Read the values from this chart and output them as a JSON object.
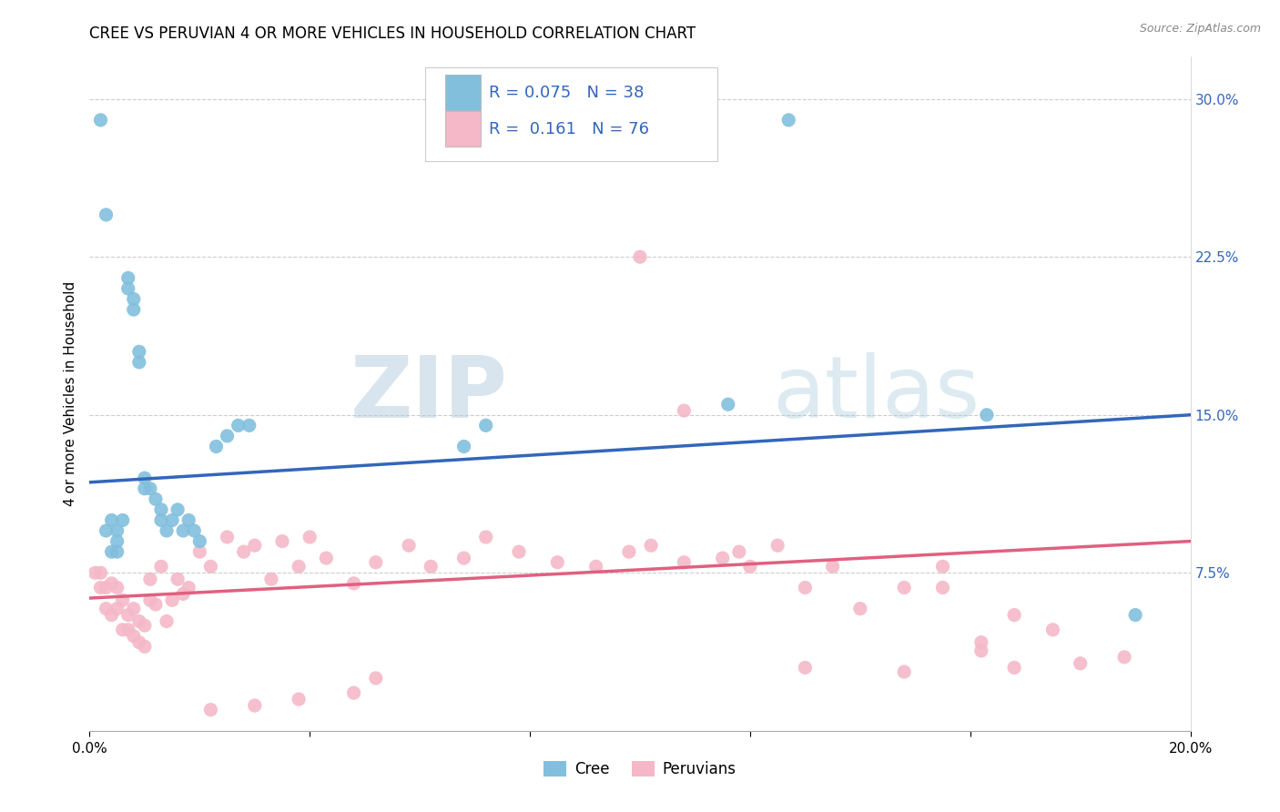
{
  "title": "CREE VS PERUVIAN 4 OR MORE VEHICLES IN HOUSEHOLD CORRELATION CHART",
  "source": "Source: ZipAtlas.com",
  "ylabel": "4 or more Vehicles in Household",
  "xmin": 0.0,
  "xmax": 0.2,
  "ymin": 0.0,
  "ymax": 0.32,
  "color_cree": "#82bfdd",
  "color_peruvian": "#f4b8c8",
  "color_cree_line": "#3366bb",
  "color_peruvian_line": "#e06080",
  "watermark_zip": "ZIP",
  "watermark_atlas": "atlas",
  "cree_x": [
    0.002,
    0.003,
    0.003,
    0.004,
    0.004,
    0.005,
    0.005,
    0.005,
    0.006,
    0.007,
    0.007,
    0.008,
    0.008,
    0.009,
    0.009,
    0.01,
    0.01,
    0.011,
    0.012,
    0.013,
    0.013,
    0.014,
    0.015,
    0.016,
    0.017,
    0.018,
    0.019,
    0.02,
    0.023,
    0.025,
    0.027,
    0.029,
    0.068,
    0.072,
    0.116,
    0.127,
    0.163,
    0.19
  ],
  "cree_y": [
    0.29,
    0.245,
    0.095,
    0.085,
    0.1,
    0.085,
    0.09,
    0.095,
    0.1,
    0.21,
    0.215,
    0.2,
    0.205,
    0.175,
    0.18,
    0.115,
    0.12,
    0.115,
    0.11,
    0.1,
    0.105,
    0.095,
    0.1,
    0.105,
    0.095,
    0.1,
    0.095,
    0.09,
    0.135,
    0.14,
    0.145,
    0.145,
    0.135,
    0.145,
    0.155,
    0.29,
    0.15,
    0.055
  ],
  "peruvian_x": [
    0.001,
    0.002,
    0.002,
    0.003,
    0.003,
    0.004,
    0.004,
    0.005,
    0.005,
    0.006,
    0.006,
    0.007,
    0.007,
    0.008,
    0.008,
    0.009,
    0.009,
    0.01,
    0.01,
    0.011,
    0.011,
    0.012,
    0.013,
    0.014,
    0.015,
    0.016,
    0.017,
    0.018,
    0.02,
    0.022,
    0.025,
    0.028,
    0.03,
    0.033,
    0.035,
    0.038,
    0.04,
    0.043,
    0.048,
    0.052,
    0.058,
    0.062,
    0.068,
    0.072,
    0.078,
    0.085,
    0.092,
    0.098,
    0.102,
    0.108,
    0.115,
    0.12,
    0.125,
    0.13,
    0.135,
    0.14,
    0.148,
    0.155,
    0.162,
    0.168,
    0.1,
    0.108,
    0.118,
    0.13,
    0.148,
    0.155,
    0.162,
    0.168,
    0.175,
    0.18,
    0.188,
    0.052,
    0.048,
    0.038,
    0.03,
    0.022
  ],
  "peruvian_y": [
    0.075,
    0.068,
    0.075,
    0.058,
    0.068,
    0.055,
    0.07,
    0.058,
    0.068,
    0.048,
    0.062,
    0.048,
    0.055,
    0.045,
    0.058,
    0.042,
    0.052,
    0.04,
    0.05,
    0.062,
    0.072,
    0.06,
    0.078,
    0.052,
    0.062,
    0.072,
    0.065,
    0.068,
    0.085,
    0.078,
    0.092,
    0.085,
    0.088,
    0.072,
    0.09,
    0.078,
    0.092,
    0.082,
    0.07,
    0.08,
    0.088,
    0.078,
    0.082,
    0.092,
    0.085,
    0.08,
    0.078,
    0.085,
    0.088,
    0.08,
    0.082,
    0.078,
    0.088,
    0.068,
    0.078,
    0.058,
    0.068,
    0.078,
    0.042,
    0.03,
    0.225,
    0.152,
    0.085,
    0.03,
    0.028,
    0.068,
    0.038,
    0.055,
    0.048,
    0.032,
    0.035,
    0.025,
    0.018,
    0.015,
    0.012,
    0.01
  ],
  "cree_trendline_x": [
    0.0,
    0.2
  ],
  "cree_trendline_y": [
    0.118,
    0.15
  ],
  "peruvian_trendline_x": [
    0.0,
    0.2
  ],
  "peruvian_trendline_y": [
    0.063,
    0.09
  ]
}
